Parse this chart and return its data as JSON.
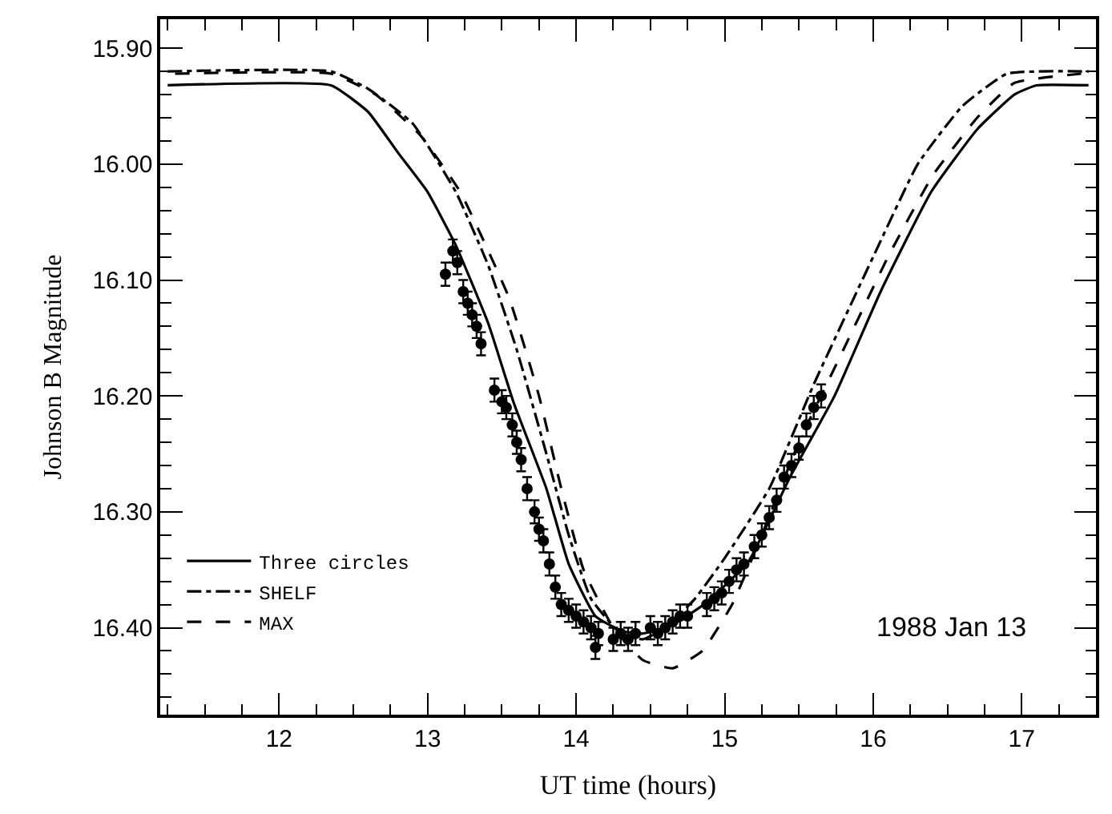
{
  "chart_data": {
    "type": "line",
    "xlabel": "UT time (hours)",
    "ylabel": "Johnson B Magnitude",
    "annotations": [
      "1988 Jan 13"
    ],
    "xlim": [
      11.2,
      17.5
    ],
    "ylim": [
      16.475,
      15.875
    ],
    "xticks": [
      {
        "value": 11.25,
        "label": null
      },
      {
        "value": 11.5,
        "label": null
      },
      {
        "value": 11.75,
        "label": null
      },
      12,
      {
        "value": 12.25,
        "label": null
      },
      {
        "value": 12.5,
        "label": null
      },
      {
        "value": 12.75,
        "label": null
      },
      13,
      {
        "value": 13.25,
        "label": null
      },
      {
        "value": 13.5,
        "label": null
      },
      {
        "value": 13.75,
        "label": null
      },
      14,
      {
        "value": 14.25,
        "label": null
      },
      {
        "value": 14.5,
        "label": null
      },
      {
        "value": 14.75,
        "label": null
      },
      15,
      {
        "value": 15.25,
        "label": null
      },
      {
        "value": 15.5,
        "label": null
      },
      {
        "value": 15.75,
        "label": null
      },
      16,
      {
        "value": 16.25,
        "label": null
      },
      {
        "value": 16.5,
        "label": null
      },
      {
        "value": 16.75,
        "label": null
      },
      17,
      {
        "value": 17.25,
        "label": null
      }
    ],
    "yticks": [
      {
        "value": 15.9,
        "label": "15.90"
      },
      {
        "value": 15.92,
        "label": null
      },
      {
        "value": 15.94,
        "label": null
      },
      {
        "value": 15.96,
        "label": null
      },
      {
        "value": 15.98,
        "label": null
      },
      {
        "value": 16.0,
        "label": "16.00"
      },
      {
        "value": 16.02,
        "label": null
      },
      {
        "value": 16.04,
        "label": null
      },
      {
        "value": 16.06,
        "label": null
      },
      {
        "value": 16.08,
        "label": null
      },
      {
        "value": 16.1,
        "label": "16.10"
      },
      {
        "value": 16.12,
        "label": null
      },
      {
        "value": 16.14,
        "label": null
      },
      {
        "value": 16.16,
        "label": null
      },
      {
        "value": 16.18,
        "label": null
      },
      {
        "value": 16.2,
        "label": "16.20"
      },
      {
        "value": 16.22,
        "label": null
      },
      {
        "value": 16.24,
        "label": null
      },
      {
        "value": 16.26,
        "label": null
      },
      {
        "value": 16.28,
        "label": null
      },
      {
        "value": 16.3,
        "label": "16.30"
      },
      {
        "value": 16.32,
        "label": null
      },
      {
        "value": 16.34,
        "label": null
      },
      {
        "value": 16.36,
        "label": null
      },
      {
        "value": 16.38,
        "label": null
      },
      {
        "value": 16.4,
        "label": "16.40"
      },
      {
        "value": 16.42,
        "label": null
      },
      {
        "value": 16.44,
        "label": null
      },
      {
        "value": 16.46,
        "label": null
      }
    ],
    "legend": "bottom left",
    "series": [
      {
        "name": "Three circles",
        "line_style": "solid",
        "color": "#000000",
        "x": [
          11.25,
          12.35,
          12.6,
          12.8,
          13.0,
          13.19,
          13.41,
          13.58,
          13.8,
          13.95,
          14.13,
          14.31,
          14.45,
          14.64,
          14.86,
          15.16,
          15.44,
          15.74,
          16.05,
          16.39,
          16.7,
          16.95,
          17.1,
          17.45
        ],
        "values": [
          15.932,
          15.932,
          15.955,
          15.99,
          16.024,
          16.07,
          16.138,
          16.206,
          16.28,
          16.345,
          16.39,
          16.403,
          16.405,
          16.398,
          16.38,
          16.343,
          16.27,
          16.2,
          16.11,
          16.024,
          15.97,
          15.94,
          15.932,
          15.932
        ]
      },
      {
        "name": "SHELF",
        "line_style": "dashdot",
        "color": "#000000",
        "x": [
          11.25,
          12.35,
          12.6,
          12.9,
          13.19,
          13.41,
          13.6,
          13.8,
          13.95,
          14.1,
          14.3,
          14.45,
          14.6,
          14.8,
          15.0,
          15.3,
          15.6,
          16.0,
          16.3,
          16.6,
          16.9,
          17.45
        ],
        "values": [
          15.92,
          15.92,
          15.935,
          15.965,
          16.024,
          16.088,
          16.16,
          16.25,
          16.32,
          16.375,
          16.405,
          16.41,
          16.4,
          16.375,
          16.34,
          16.28,
          16.19,
          16.08,
          16.0,
          15.95,
          15.922,
          15.92
        ]
      },
      {
        "name": "MAX",
        "line_style": "dashed",
        "color": "#000000",
        "x": [
          11.3,
          12.35,
          12.65,
          12.95,
          13.22,
          13.55,
          13.75,
          13.9,
          14.05,
          14.25,
          14.45,
          14.65,
          14.85,
          15.05,
          15.25,
          15.5,
          15.8,
          16.1,
          16.4,
          16.7,
          16.95,
          17.4
        ],
        "values": [
          15.922,
          15.922,
          15.94,
          15.975,
          16.024,
          16.116,
          16.2,
          16.28,
          16.35,
          16.4,
          16.428,
          16.435,
          16.42,
          16.38,
          16.32,
          16.24,
          16.16,
          16.08,
          16.01,
          15.96,
          15.93,
          15.922
        ]
      },
      {
        "type": "scatter",
        "marker": "circle",
        "color": "#000000",
        "x": [
          13.12,
          13.17,
          13.2,
          13.24,
          13.27,
          13.3,
          13.33,
          13.36,
          13.45,
          13.5,
          13.53,
          13.57,
          13.6,
          13.63,
          13.67,
          13.72,
          13.75,
          13.78,
          13.82,
          13.86,
          13.9,
          13.95,
          14.0,
          14.05,
          14.1,
          14.15,
          14.13,
          14.25,
          14.3,
          14.35,
          14.4,
          14.5,
          14.55,
          14.6,
          14.65,
          14.7,
          14.75,
          14.88,
          14.93,
          14.98,
          15.03,
          15.08,
          15.13,
          15.2,
          15.25,
          15.3,
          15.35,
          15.4,
          15.45,
          15.5,
          15.55,
          15.6,
          15.65
        ],
        "values": [
          16.095,
          16.075,
          16.085,
          16.11,
          16.12,
          16.13,
          16.14,
          16.155,
          16.195,
          16.205,
          16.21,
          16.225,
          16.24,
          16.255,
          16.28,
          16.3,
          16.315,
          16.325,
          16.345,
          16.365,
          16.38,
          16.385,
          16.39,
          16.395,
          16.4,
          16.405,
          16.417,
          16.41,
          16.405,
          16.41,
          16.405,
          16.4,
          16.405,
          16.4,
          16.395,
          16.39,
          16.39,
          16.38,
          16.375,
          16.37,
          16.36,
          16.35,
          16.345,
          16.33,
          16.32,
          16.305,
          16.29,
          16.27,
          16.26,
          16.245,
          16.225,
          16.21,
          16.2
        ],
        "errors": [
          0.01,
          0.01,
          0.01,
          0.01,
          0.01,
          0.01,
          0.01,
          0.01,
          0.01,
          0.01,
          0.01,
          0.01,
          0.01,
          0.01,
          0.01,
          0.01,
          0.01,
          0.01,
          0.01,
          0.01,
          0.01,
          0.01,
          0.01,
          0.01,
          0.01,
          0.01,
          0.01,
          0.01,
          0.01,
          0.01,
          0.01,
          0.01,
          0.01,
          0.01,
          0.01,
          0.01,
          0.01,
          0.01,
          0.01,
          0.01,
          0.01,
          0.01,
          0.01,
          0.01,
          0.01,
          0.01,
          0.01,
          0.01,
          0.01,
          0.01,
          0.01,
          0.01,
          0.01
        ]
      }
    ]
  }
}
